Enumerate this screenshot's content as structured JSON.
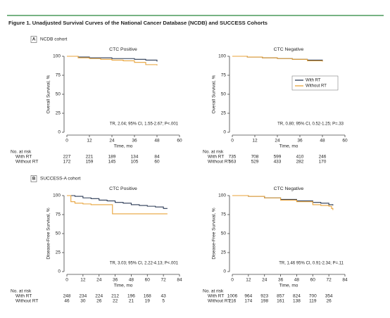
{
  "figure_title": "Figure 1. Unadjusted Survival Curves of the National Cancer Database (NCDB) and SUCCESS Cohorts",
  "sections": [
    {
      "letter": "A",
      "label": "NCDB cohort"
    },
    {
      "letter": "B",
      "label": "SUCCESS-A cohort"
    }
  ],
  "chart_data": [
    {
      "type": "line",
      "title": "CTC Positive",
      "ylabel": "Overall Survival, %",
      "xlabel": "Time, mo",
      "annotation": "TR, 2.04; 95% CI, 1.55-2.67; P<.001",
      "xlim": [
        0,
        60
      ],
      "xticks": [
        0,
        12,
        24,
        36,
        48,
        60
      ],
      "ylim": [
        0,
        100
      ],
      "yticks": [
        0,
        25,
        50,
        75,
        100
      ],
      "risk_title": "No. at risk",
      "series": [
        {
          "name": "With RT",
          "color": "#2b3a55",
          "x": [
            0,
            6,
            12,
            18,
            24,
            30,
            36,
            42,
            48
          ],
          "values": [
            100,
            99,
            98,
            98,
            97,
            97,
            96,
            95,
            93
          ],
          "at_risk": [
            227,
            221,
            189,
            134,
            84
          ]
        },
        {
          "name": "Without RT",
          "color": "#e8a33a",
          "x": [
            0,
            6,
            12,
            18,
            24,
            30,
            36,
            42,
            48
          ],
          "values": [
            100,
            98,
            97,
            96,
            95,
            94,
            92,
            89,
            88
          ],
          "at_risk": [
            172,
            159,
            145,
            105,
            60
          ]
        }
      ]
    },
    {
      "type": "line",
      "title": "CTC Negative",
      "ylabel": "Overall Survival, %",
      "xlabel": "Time, mo",
      "annotation": "TR, 0.80; 95% CI, 0.52-1.25; P=.33",
      "xlim": [
        0,
        60
      ],
      "xticks": [
        0,
        12,
        24,
        36,
        48,
        60
      ],
      "ylim": [
        0,
        100
      ],
      "yticks": [
        0,
        25,
        50,
        75,
        100
      ],
      "risk_title": "No. at risk",
      "legend": "right",
      "series": [
        {
          "name": "With RT",
          "color": "#2b3a55",
          "x": [
            0,
            8,
            16,
            24,
            32,
            40,
            48
          ],
          "values": [
            100,
            99,
            98,
            97,
            96,
            95,
            94
          ],
          "at_risk": [
            735,
            708,
            599,
            410,
            246
          ]
        },
        {
          "name": "Without RT",
          "color": "#e8a33a",
          "x": [
            0,
            8,
            16,
            24,
            32,
            40,
            48
          ],
          "values": [
            100,
            99,
            98,
            97,
            96,
            94,
            93
          ],
          "at_risk": [
            563,
            529,
            433,
            282,
            170
          ]
        }
      ]
    },
    {
      "type": "line",
      "title": "CTC Positive",
      "ylabel": "Disease-Free Survival, %",
      "xlabel": "Time, mo",
      "annotation": "TR, 3.03; 95% CI, 2.22-4.13; P<.001",
      "xlim": [
        0,
        84
      ],
      "xticks": [
        0,
        12,
        24,
        36,
        48,
        60,
        72,
        84
      ],
      "ylim": [
        0,
        100
      ],
      "yticks": [
        0,
        25,
        50,
        75,
        100
      ],
      "risk_title": "No. at risk",
      "series": [
        {
          "name": "With RT",
          "color": "#2b3a55",
          "x": [
            0,
            6,
            12,
            18,
            24,
            30,
            36,
            42,
            48,
            54,
            60,
            66,
            72,
            75
          ],
          "values": [
            100,
            99,
            97,
            96,
            94,
            93,
            91,
            90,
            88,
            87,
            86,
            85,
            83,
            83
          ],
          "at_risk": [
            248,
            234,
            224,
            212,
            196,
            168,
            43
          ]
        },
        {
          "name": "Without RT",
          "color": "#e8a33a",
          "x": [
            0,
            3,
            6,
            12,
            18,
            24,
            30,
            34,
            40,
            50,
            60,
            72,
            75
          ],
          "values": [
            100,
            92,
            90,
            89,
            88,
            88,
            88,
            76,
            76,
            76,
            76,
            76,
            76
          ],
          "at_risk": [
            46,
            30,
            26,
            22,
            21,
            19,
            5
          ]
        }
      ]
    },
    {
      "type": "line",
      "title": "CTC Negative",
      "ylabel": "Disease-Free Survival, %",
      "xlabel": "Time, mo",
      "annotation": "TR, 1.46 95% CI, 0.91-2.34; P=.11",
      "xlim": [
        0,
        84
      ],
      "xticks": [
        0,
        12,
        24,
        36,
        48,
        60,
        72,
        84
      ],
      "ylim": [
        0,
        100
      ],
      "yticks": [
        0,
        25,
        50,
        75,
        100
      ],
      "risk_title": "No. at risk",
      "series": [
        {
          "name": "With RT",
          "color": "#2b3a55",
          "x": [
            0,
            12,
            24,
            36,
            48,
            60,
            66,
            72,
            75
          ],
          "values": [
            100,
            99,
            97,
            95,
            93,
            91,
            90,
            88,
            87
          ],
          "at_risk": [
            1006,
            964,
            923,
            857,
            824,
            700,
            354
          ]
        },
        {
          "name": "Without RT",
          "color": "#e8a33a",
          "x": [
            0,
            12,
            24,
            36,
            48,
            60,
            66,
            72,
            74,
            75
          ],
          "values": [
            100,
            99,
            97,
            94,
            92,
            88,
            87,
            86,
            83,
            81
          ],
          "at_risk": [
            216,
            174,
            198,
            161,
            138,
            119,
            26
          ]
        }
      ]
    }
  ]
}
